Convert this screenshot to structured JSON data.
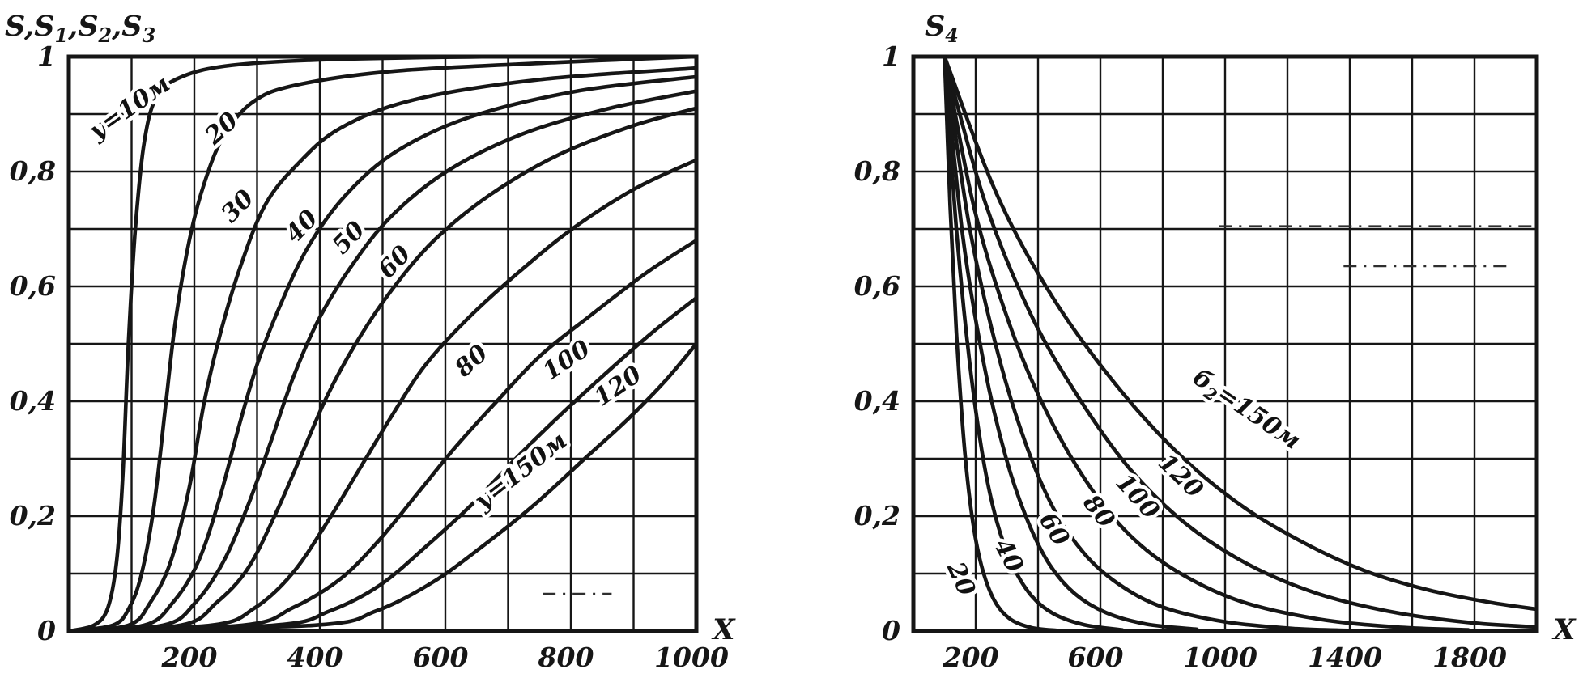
{
  "figure": {
    "background": "#ffffff",
    "ink": "#161616"
  },
  "chart_data": [
    {
      "id": "left",
      "type": "line",
      "y_axis_title": "S,S₁,S₂,S₃",
      "x_axis_title": "X",
      "xlim": [
        0,
        1000
      ],
      "ylim": [
        0,
        1
      ],
      "x_grid_step": 100,
      "y_grid_step": 0.1,
      "x_ticks": [
        {
          "v": 200,
          "label": "200"
        },
        {
          "v": 400,
          "label": "400"
        },
        {
          "v": 600,
          "label": "600"
        },
        {
          "v": 800,
          "label": "800"
        },
        {
          "v": 1000,
          "label": "1000"
        }
      ],
      "y_ticks": [
        {
          "v": 0,
          "label": "0"
        },
        {
          "v": 0.2,
          "label": "0,2"
        },
        {
          "v": 0.4,
          "label": "0,4"
        },
        {
          "v": 0.6,
          "label": "0,6"
        },
        {
          "v": 0.8,
          "label": "0,8"
        },
        {
          "v": 1,
          "label": "1"
        }
      ],
      "artifacts": [
        {
          "y": 0.065,
          "x1": 755,
          "x2": 865
        }
      ],
      "series": [
        {
          "name": "y10",
          "label": "у=10м",
          "label_pos": {
            "x": 104,
            "y": 0.9,
            "angle": -35
          },
          "points": [
            [
              0,
              0
            ],
            [
              40,
              0.01
            ],
            [
              62,
              0.04
            ],
            [
              76,
              0.12
            ],
            [
              86,
              0.27
            ],
            [
              95,
              0.5
            ],
            [
              106,
              0.7
            ],
            [
              120,
              0.85
            ],
            [
              140,
              0.93
            ],
            [
              180,
              0.965
            ],
            [
              260,
              0.985
            ],
            [
              420,
              0.995
            ],
            [
              700,
              1
            ],
            [
              1000,
              1
            ]
          ]
        },
        {
          "name": "y20",
          "label": "20",
          "label_pos": {
            "x": 252,
            "y": 0.865,
            "angle": -42
          },
          "points": [
            [
              0,
              0
            ],
            [
              70,
              0.01
            ],
            [
              96,
              0.04
            ],
            [
              116,
              0.1
            ],
            [
              136,
              0.22
            ],
            [
              155,
              0.4
            ],
            [
              170,
              0.54
            ],
            [
              192,
              0.68
            ],
            [
              216,
              0.78
            ],
            [
              246,
              0.86
            ],
            [
              292,
              0.92
            ],
            [
              360,
              0.95
            ],
            [
              520,
              0.975
            ],
            [
              780,
              0.99
            ],
            [
              1000,
              1
            ]
          ]
        },
        {
          "name": "y30",
          "label": "30",
          "label_pos": {
            "x": 278,
            "y": 0.73,
            "angle": -46
          },
          "points": [
            [
              0,
              0
            ],
            [
              95,
              0.01
            ],
            [
              130,
              0.05
            ],
            [
              162,
              0.12
            ],
            [
              192,
              0.25
            ],
            [
              216,
              0.4
            ],
            [
              242,
              0.52
            ],
            [
              272,
              0.63
            ],
            [
              312,
              0.74
            ],
            [
              362,
              0.81
            ],
            [
              432,
              0.875
            ],
            [
              550,
              0.925
            ],
            [
              750,
              0.96
            ],
            [
              1000,
              0.98
            ]
          ]
        },
        {
          "name": "y40",
          "label": "40",
          "label_pos": {
            "x": 380,
            "y": 0.695,
            "angle": -46
          },
          "points": [
            [
              0,
              0
            ],
            [
              120,
              0.01
            ],
            [
              166,
              0.05
            ],
            [
              206,
              0.12
            ],
            [
              240,
              0.23
            ],
            [
              272,
              0.36
            ],
            [
              302,
              0.47
            ],
            [
              338,
              0.57
            ],
            [
              382,
              0.67
            ],
            [
              442,
              0.76
            ],
            [
              522,
              0.835
            ],
            [
              640,
              0.895
            ],
            [
              810,
              0.94
            ],
            [
              1000,
              0.965
            ]
          ]
        },
        {
          "name": "y50",
          "label": "50",
          "label_pos": {
            "x": 455,
            "y": 0.675,
            "angle": -46
          },
          "points": [
            [
              0,
              0
            ],
            [
              150,
              0.01
            ],
            [
              202,
              0.05
            ],
            [
              246,
              0.12
            ],
            [
              286,
              0.22
            ],
            [
              322,
              0.33
            ],
            [
              357,
              0.44
            ],
            [
              397,
              0.54
            ],
            [
              447,
              0.63
            ],
            [
              512,
              0.72
            ],
            [
              602,
              0.8
            ],
            [
              722,
              0.865
            ],
            [
              862,
              0.91
            ],
            [
              1000,
              0.94
            ]
          ]
        },
        {
          "name": "y60",
          "label": "60",
          "label_pos": {
            "x": 528,
            "y": 0.633,
            "angle": -46
          },
          "points": [
            [
              0,
              0
            ],
            [
              178,
              0.01
            ],
            [
              236,
              0.05
            ],
            [
              286,
              0.11
            ],
            [
              332,
              0.21
            ],
            [
              372,
              0.31
            ],
            [
              412,
              0.41
            ],
            [
              457,
              0.5
            ],
            [
              512,
              0.59
            ],
            [
              582,
              0.68
            ],
            [
              672,
              0.76
            ],
            [
              782,
              0.83
            ],
            [
              900,
              0.88
            ],
            [
              1000,
              0.91
            ]
          ]
        },
        {
          "name": "y80",
          "label": "80",
          "label_pos": {
            "x": 650,
            "y": 0.46,
            "angle": -42
          },
          "points": [
            [
              0,
              0
            ],
            [
              226,
              0.01
            ],
            [
              296,
              0.04
            ],
            [
              356,
              0.1
            ],
            [
              412,
              0.19
            ],
            [
              462,
              0.28
            ],
            [
              512,
              0.37
            ],
            [
              566,
              0.46
            ],
            [
              632,
              0.54
            ],
            [
              712,
              0.62
            ],
            [
              802,
              0.7
            ],
            [
              902,
              0.77
            ],
            [
              1000,
              0.82
            ]
          ]
        },
        {
          "name": "y100",
          "label": "100",
          "label_pos": {
            "x": 800,
            "y": 0.46,
            "angle": -34
          },
          "points": [
            [
              0,
              0
            ],
            [
              276,
              0.01
            ],
            [
              356,
              0.04
            ],
            [
              432,
              0.09
            ],
            [
              496,
              0.16
            ],
            [
              556,
              0.24
            ],
            [
              616,
              0.32
            ],
            [
              682,
              0.4
            ],
            [
              752,
              0.48
            ],
            [
              832,
              0.55
            ],
            [
              922,
              0.625
            ],
            [
              1000,
              0.68
            ]
          ]
        },
        {
          "name": "y120",
          "label": "120",
          "label_pos": {
            "x": 882,
            "y": 0.415,
            "angle": -34
          },
          "points": [
            [
              0,
              0
            ],
            [
              326,
              0.01
            ],
            [
              416,
              0.035
            ],
            [
              496,
              0.08
            ],
            [
              572,
              0.15
            ],
            [
              642,
              0.22
            ],
            [
              712,
              0.3
            ],
            [
              782,
              0.375
            ],
            [
              857,
              0.45
            ],
            [
              930,
              0.52
            ],
            [
              1000,
              0.58
            ]
          ]
        },
        {
          "name": "y150",
          "label": "у=150м",
          "label_pos": {
            "x": 728,
            "y": 0.268,
            "angle": -38
          },
          "points": [
            [
              0,
              0
            ],
            [
              390,
              0.01
            ],
            [
              490,
              0.035
            ],
            [
              580,
              0.085
            ],
            [
              662,
              0.15
            ],
            [
              742,
              0.22
            ],
            [
              822,
              0.3
            ],
            [
              892,
              0.37
            ],
            [
              950,
              0.435
            ],
            [
              1000,
              0.5
            ]
          ]
        }
      ]
    },
    {
      "id": "right",
      "type": "line",
      "y_axis_title": "S₄",
      "x_axis_title": "X",
      "xlim": [
        0,
        2000
      ],
      "ylim": [
        0,
        1
      ],
      "x_grid_step": 200,
      "y_grid_step": 0.1,
      "x_ticks": [
        {
          "v": 200,
          "label": "200"
        },
        {
          "v": 600,
          "label": "600"
        },
        {
          "v": 1000,
          "label": "1000"
        },
        {
          "v": 1400,
          "label": "1400"
        },
        {
          "v": 1800,
          "label": "1800"
        }
      ],
      "y_ticks": [
        {
          "v": 0,
          "label": "0"
        },
        {
          "v": 0.2,
          "label": "0,2"
        },
        {
          "v": 0.4,
          "label": "0,4"
        },
        {
          "v": 0.6,
          "label": "0,6"
        },
        {
          "v": 0.8,
          "label": "0,8"
        },
        {
          "v": 1,
          "label": "1"
        }
      ],
      "artifacts": [
        {
          "y": 0.705,
          "x1": 980,
          "x2": 2000
        },
        {
          "y": 0.635,
          "x1": 1380,
          "x2": 1920
        }
      ],
      "series": [
        {
          "name": "b20",
          "label": "20",
          "label_pos": {
            "x": 130,
            "y": 0.085,
            "angle": 66
          },
          "points": [
            [
              100,
              1
            ],
            [
              118,
              0.74
            ],
            [
              138,
              0.52
            ],
            [
              162,
              0.33
            ],
            [
              188,
              0.2
            ],
            [
              218,
              0.115
            ],
            [
              258,
              0.055
            ],
            [
              308,
              0.022
            ],
            [
              378,
              0.006
            ],
            [
              460,
              0.001
            ]
          ]
        },
        {
          "name": "b40",
          "label": "40",
          "label_pos": {
            "x": 283,
            "y": 0.125,
            "angle": 62
          },
          "points": [
            [
              100,
              1
            ],
            [
              138,
              0.7
            ],
            [
              180,
              0.47
            ],
            [
              224,
              0.3
            ],
            [
              268,
              0.19
            ],
            [
              318,
              0.115
            ],
            [
              378,
              0.062
            ],
            [
              450,
              0.03
            ],
            [
              548,
              0.011
            ],
            [
              670,
              0.002
            ]
          ]
        },
        {
          "name": "b60",
          "label": "60",
          "label_pos": {
            "x": 430,
            "y": 0.17,
            "angle": 58
          },
          "points": [
            [
              100,
              1
            ],
            [
              158,
              0.69
            ],
            [
              228,
              0.46
            ],
            [
              298,
              0.3
            ],
            [
              368,
              0.19
            ],
            [
              438,
              0.115
            ],
            [
              518,
              0.065
            ],
            [
              618,
              0.032
            ],
            [
              748,
              0.012
            ],
            [
              910,
              0.003
            ]
          ]
        },
        {
          "name": "b80",
          "label": "80",
          "label_pos": {
            "x": 575,
            "y": 0.2,
            "angle": 52
          },
          "points": [
            [
              100,
              1
            ],
            [
              178,
              0.71
            ],
            [
              268,
              0.49
            ],
            [
              358,
              0.33
            ],
            [
              448,
              0.215
            ],
            [
              548,
              0.135
            ],
            [
              658,
              0.082
            ],
            [
              798,
              0.042
            ],
            [
              1000,
              0.016
            ],
            [
              1230,
              0.004
            ],
            [
              1400,
              0.001
            ]
          ]
        },
        {
          "name": "b100",
          "label": "100",
          "label_pos": {
            "x": 700,
            "y": 0.225,
            "angle": 48
          },
          "points": [
            [
              100,
              1
            ],
            [
              198,
              0.73
            ],
            [
              318,
              0.52
            ],
            [
              438,
              0.37
            ],
            [
              568,
              0.25
            ],
            [
              698,
              0.165
            ],
            [
              848,
              0.103
            ],
            [
              1048,
              0.052
            ],
            [
              1298,
              0.021
            ],
            [
              1548,
              0.007
            ],
            [
              1780,
              0.002
            ]
          ]
        },
        {
          "name": "b120",
          "label": "120",
          "label_pos": {
            "x": 840,
            "y": 0.26,
            "angle": 44
          },
          "points": [
            [
              100,
              1
            ],
            [
              228,
              0.75
            ],
            [
              378,
              0.55
            ],
            [
              538,
              0.4
            ],
            [
              698,
              0.28
            ],
            [
              878,
              0.185
            ],
            [
              1078,
              0.115
            ],
            [
              1298,
              0.065
            ],
            [
              1548,
              0.032
            ],
            [
              1798,
              0.014
            ],
            [
              2000,
              0.007
            ]
          ]
        },
        {
          "name": "b150",
          "label": "б₂=150м",
          "label_pos": {
            "x": 1055,
            "y": 0.375,
            "angle": 34
          },
          "points": [
            [
              100,
              1
            ],
            [
              268,
              0.76
            ],
            [
              448,
              0.58
            ],
            [
              648,
              0.43
            ],
            [
              848,
              0.31
            ],
            [
              1048,
              0.22
            ],
            [
              1248,
              0.155
            ],
            [
              1448,
              0.105
            ],
            [
              1648,
              0.072
            ],
            [
              1848,
              0.05
            ],
            [
              2000,
              0.038
            ]
          ]
        }
      ]
    }
  ]
}
